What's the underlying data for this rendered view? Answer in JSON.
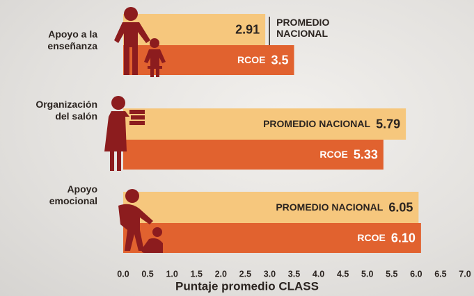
{
  "chart_data": {
    "type": "bar",
    "orientation": "horizontal",
    "categories": [
      "Apoyo a la enseñanza",
      "Organización del salón",
      "Apoyo emocional"
    ],
    "series": [
      {
        "name": "PROMEDIO NACIONAL",
        "color": "#f6c77d",
        "values": [
          2.91,
          5.79,
          6.05
        ]
      },
      {
        "name": "RCOE",
        "color": "#e1622f",
        "values": [
          3.5,
          5.33,
          6.1
        ],
        "value_labels": [
          "3.5",
          "5.33",
          "6.10"
        ]
      }
    ],
    "xlabel": "Puntaje promedio CLASS",
    "xlim": [
      0,
      7
    ],
    "xticks": [
      {
        "value": 0,
        "label": "0.0"
      },
      {
        "value": 0.5,
        "label": "0.5"
      },
      {
        "value": 1,
        "label": "1.0"
      },
      {
        "value": 1.5,
        "label": "1.5"
      },
      {
        "value": 2,
        "label": "2.0"
      },
      {
        "value": 2.5,
        "label": "2.5"
      },
      {
        "value": 3,
        "label": "3.0"
      },
      {
        "value": 3.5,
        "label": "3.5"
      },
      {
        "value": 4,
        "label": "4.0"
      },
      {
        "value": 4.5,
        "label": "4.5"
      },
      {
        "value": 5,
        "label": "5.0"
      },
      {
        "value": 5.5,
        "label": "5.5"
      },
      {
        "value": 6,
        "label": "6.0"
      },
      {
        "value": 6.5,
        "label": "6.5"
      },
      {
        "value": 7,
        "label": "7.0"
      }
    ],
    "grid": false
  }
}
